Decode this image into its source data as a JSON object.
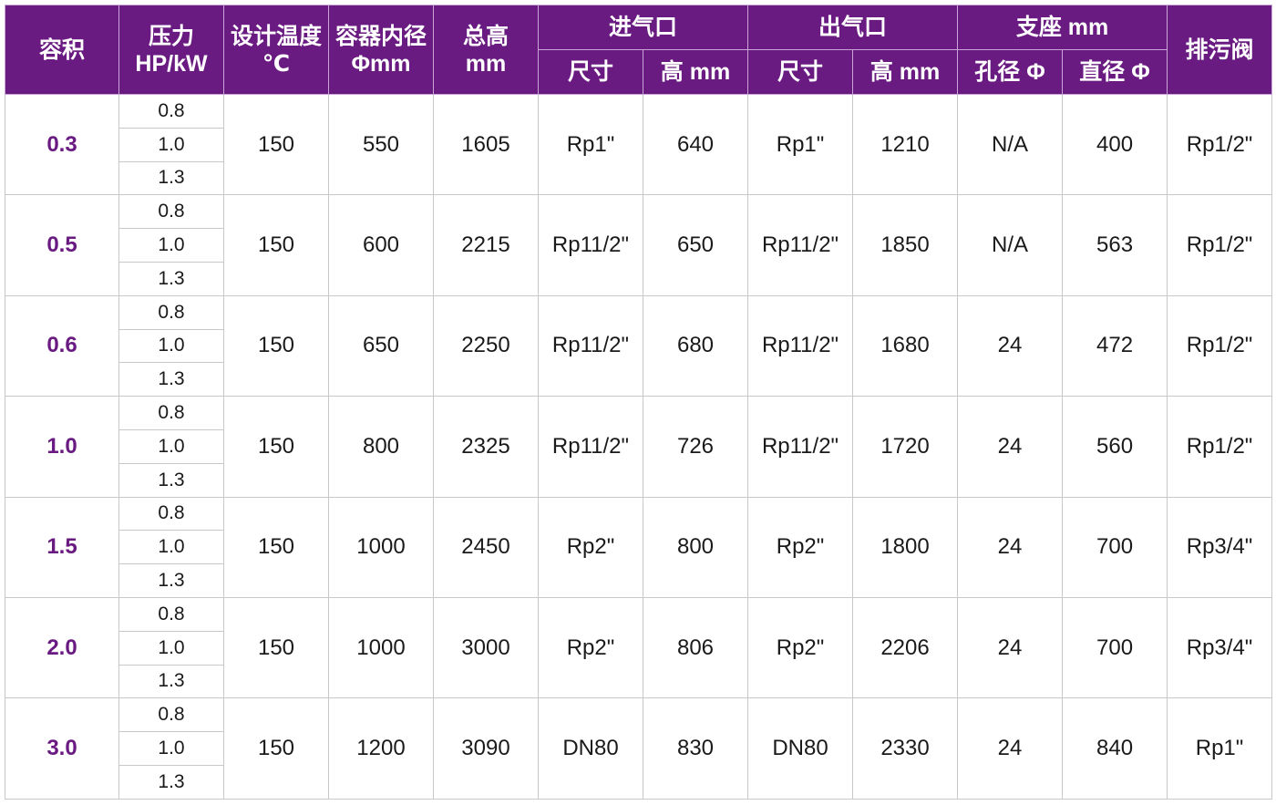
{
  "colors": {
    "header_bg": "#6a1b82",
    "volume_text": "#6a1b82"
  },
  "header": {
    "volume": "容积",
    "pressure": [
      "压力",
      "HP/kW"
    ],
    "design_temp": [
      "设计温度",
      "℃"
    ],
    "inner_diameter": [
      "容器内径",
      "Φmm"
    ],
    "total_height": [
      "总高",
      "mm"
    ],
    "inlet": "进气口",
    "outlet": "出气口",
    "support": "支座 mm",
    "drain_valve": "排污阀",
    "inlet_size": "尺寸",
    "inlet_height": "高 mm",
    "outlet_size": "尺寸",
    "outlet_height": "高 mm",
    "hole_diameter": "孔径 Φ",
    "support_diameter": "直径 Φ"
  },
  "rows": [
    {
      "volume": "0.3",
      "pressures": [
        "0.8",
        "1.0",
        "1.3"
      ],
      "temp": "150",
      "diameter": "550",
      "height": "1605",
      "inlet_size": "Rp1\"",
      "inlet_height": "640",
      "outlet_size": "Rp1\"",
      "outlet_height": "1210",
      "hole": "N/A",
      "support_dia": "400",
      "drain": "Rp1/2\""
    },
    {
      "volume": "0.5",
      "pressures": [
        "0.8",
        "1.0",
        "1.3"
      ],
      "temp": "150",
      "diameter": "600",
      "height": "2215",
      "inlet_size": "Rp11/2\"",
      "inlet_height": "650",
      "outlet_size": "Rp11/2\"",
      "outlet_height": "1850",
      "hole": "N/A",
      "support_dia": "563",
      "drain": "Rp1/2\""
    },
    {
      "volume": "0.6",
      "pressures": [
        "0.8",
        "1.0",
        "1.3"
      ],
      "temp": "150",
      "diameter": "650",
      "height": "2250",
      "inlet_size": "Rp11/2\"",
      "inlet_height": "680",
      "outlet_size": "Rp11/2\"",
      "outlet_height": "1680",
      "hole": "24",
      "support_dia": "472",
      "drain": "Rp1/2\""
    },
    {
      "volume": "1.0",
      "pressures": [
        "0.8",
        "1.0",
        "1.3"
      ],
      "temp": "150",
      "diameter": "800",
      "height": "2325",
      "inlet_size": "Rp11/2\"",
      "inlet_height": "726",
      "outlet_size": "Rp11/2\"",
      "outlet_height": "1720",
      "hole": "24",
      "support_dia": "560",
      "drain": "Rp1/2\""
    },
    {
      "volume": "1.5",
      "pressures": [
        "0.8",
        "1.0",
        "1.3"
      ],
      "temp": "150",
      "diameter": "1000",
      "height": "2450",
      "inlet_size": "Rp2\"",
      "inlet_height": "800",
      "outlet_size": "Rp2\"",
      "outlet_height": "1800",
      "hole": "24",
      "support_dia": "700",
      "drain": "Rp3/4\""
    },
    {
      "volume": "2.0",
      "pressures": [
        "0.8",
        "1.0",
        "1.3"
      ],
      "temp": "150",
      "diameter": "1000",
      "height": "3000",
      "inlet_size": "Rp2\"",
      "inlet_height": "806",
      "outlet_size": "Rp2\"",
      "outlet_height": "2206",
      "hole": "24",
      "support_dia": "700",
      "drain": "Rp3/4\""
    },
    {
      "volume": "3.0",
      "pressures": [
        "0.8",
        "1.0",
        "1.3"
      ],
      "temp": "150",
      "diameter": "1200",
      "height": "3090",
      "inlet_size": "DN80",
      "inlet_height": "830",
      "outlet_size": "DN80",
      "outlet_height": "2330",
      "hole": "24",
      "support_dia": "840",
      "drain": "Rp1\""
    }
  ]
}
